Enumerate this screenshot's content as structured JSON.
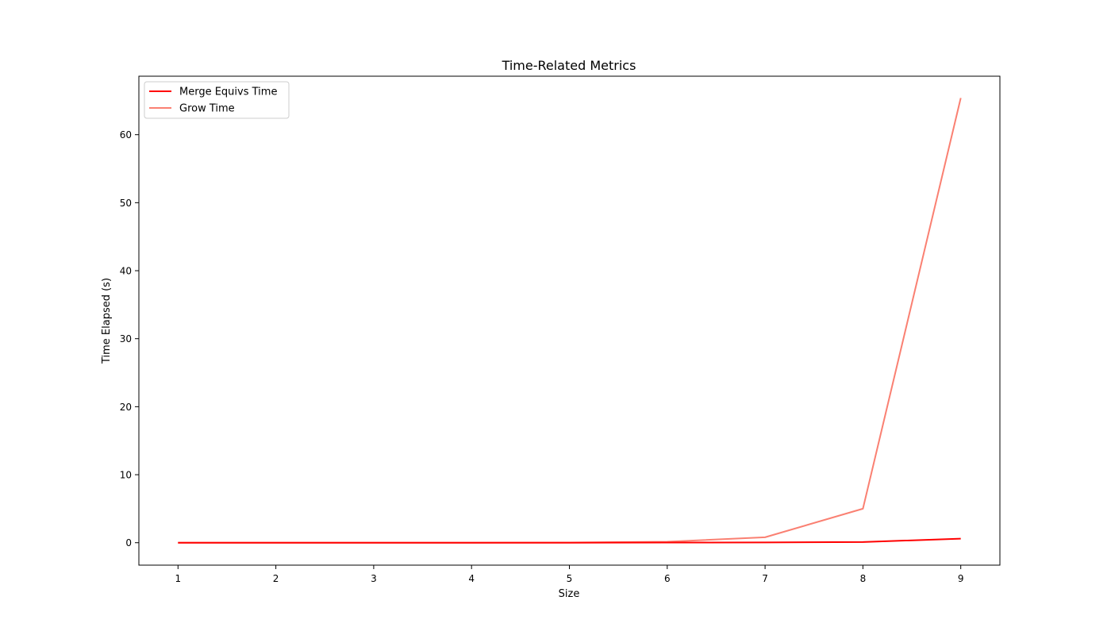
{
  "chart_data": {
    "type": "line",
    "title": "Time-Related Metrics",
    "xlabel": "Size",
    "ylabel": "Time Elapsed (s)",
    "x": [
      1,
      2,
      3,
      4,
      5,
      6,
      7,
      8,
      9
    ],
    "xlim": [
      0.6,
      9.4
    ],
    "ylim": [
      -3.3,
      68.6
    ],
    "xticks": [
      1,
      2,
      3,
      4,
      5,
      6,
      7,
      8,
      9
    ],
    "yticks": [
      0,
      10,
      20,
      30,
      40,
      50,
      60
    ],
    "grid": false,
    "legend_position": "upper-left",
    "series": [
      {
        "name": "Merge Equivs Time",
        "color": "#ff0000",
        "values": [
          0.0,
          0.0,
          0.0,
          0.0,
          0.0,
          0.02,
          0.04,
          0.1,
          0.6
        ]
      },
      {
        "name": "Grow Time",
        "color": "#fa8072",
        "values": [
          0.0,
          0.0,
          0.0,
          0.0,
          0.02,
          0.15,
          0.8,
          5.0,
          65.4
        ]
      }
    ]
  }
}
